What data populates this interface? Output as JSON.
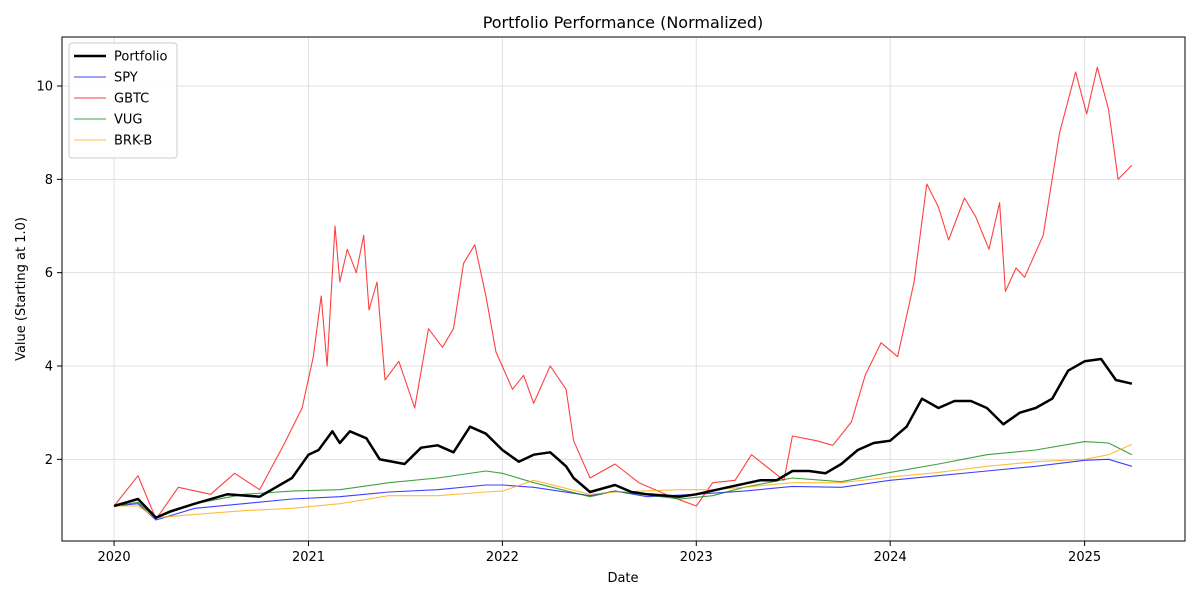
{
  "chart_data": {
    "type": "line",
    "title": "Portfolio Performance (Normalized)",
    "xlabel": "Date",
    "ylabel": "Value (Starting at 1.0)",
    "x_range": [
      "2019-09-25",
      "2025-07-09"
    ],
    "ylim": [
      0.25,
      11.05
    ],
    "x_ticks": [
      {
        "label": "2020",
        "date": "2020-01-01"
      },
      {
        "label": "2021",
        "date": "2021-01-01"
      },
      {
        "label": "2022",
        "date": "2022-01-01"
      },
      {
        "label": "2023",
        "date": "2023-01-01"
      },
      {
        "label": "2024",
        "date": "2024-01-01"
      },
      {
        "label": "2025",
        "date": "2025-01-01"
      }
    ],
    "y_ticks": [
      2,
      4,
      6,
      8,
      10
    ],
    "grid": true,
    "legend_position": "top-left",
    "series": [
      {
        "name": "Portfolio",
        "color": "#000000",
        "emphasis": "thick",
        "points": [
          [
            "2020-01-01",
            1.0
          ],
          [
            "2020-02-15",
            1.15
          ],
          [
            "2020-03-20",
            0.75
          ],
          [
            "2020-04-15",
            0.88
          ],
          [
            "2020-06-01",
            1.05
          ],
          [
            "2020-08-01",
            1.25
          ],
          [
            "2020-10-01",
            1.2
          ],
          [
            "2020-12-01",
            1.6
          ],
          [
            "2021-01-01",
            2.1
          ],
          [
            "2021-01-20",
            2.2
          ],
          [
            "2021-02-15",
            2.6
          ],
          [
            "2021-03-01",
            2.35
          ],
          [
            "2021-03-20",
            2.6
          ],
          [
            "2021-04-20",
            2.45
          ],
          [
            "2021-05-15",
            2.0
          ],
          [
            "2021-07-01",
            1.9
          ],
          [
            "2021-08-01",
            2.25
          ],
          [
            "2021-09-01",
            2.3
          ],
          [
            "2021-10-01",
            2.15
          ],
          [
            "2021-11-01",
            2.7
          ],
          [
            "2021-12-01",
            2.55
          ],
          [
            "2022-01-01",
            2.2
          ],
          [
            "2022-02-01",
            1.95
          ],
          [
            "2022-03-01",
            2.1
          ],
          [
            "2022-04-01",
            2.15
          ],
          [
            "2022-05-01",
            1.85
          ],
          [
            "2022-05-15",
            1.6
          ],
          [
            "2022-06-15",
            1.3
          ],
          [
            "2022-08-01",
            1.45
          ],
          [
            "2022-09-01",
            1.3
          ],
          [
            "2022-10-01",
            1.25
          ],
          [
            "2022-12-01",
            1.2
          ],
          [
            "2023-01-01",
            1.25
          ],
          [
            "2023-03-01",
            1.4
          ],
          [
            "2023-05-01",
            1.55
          ],
          [
            "2023-06-01",
            1.55
          ],
          [
            "2023-07-01",
            1.75
          ],
          [
            "2023-08-01",
            1.75
          ],
          [
            "2023-09-01",
            1.7
          ],
          [
            "2023-10-01",
            1.9
          ],
          [
            "2023-11-01",
            2.2
          ],
          [
            "2023-12-01",
            2.35
          ],
          [
            "2024-01-01",
            2.4
          ],
          [
            "2024-02-01",
            2.7
          ],
          [
            "2024-03-01",
            3.3
          ],
          [
            "2024-04-01",
            3.1
          ],
          [
            "2024-05-01",
            3.25
          ],
          [
            "2024-06-01",
            3.25
          ],
          [
            "2024-07-01",
            3.1
          ],
          [
            "2024-08-01",
            2.75
          ],
          [
            "2024-09-01",
            3.0
          ],
          [
            "2024-10-01",
            3.1
          ],
          [
            "2024-11-01",
            3.3
          ],
          [
            "2024-12-01",
            3.9
          ],
          [
            "2025-01-01",
            4.1
          ],
          [
            "2025-02-01",
            4.15
          ],
          [
            "2025-03-01",
            3.7
          ],
          [
            "2025-03-20",
            3.65
          ],
          [
            "2025-03-31",
            3.62
          ]
        ]
      },
      {
        "name": "SPY",
        "color": "#0000ff",
        "points": [
          [
            "2020-01-01",
            1.0
          ],
          [
            "2020-02-15",
            1.05
          ],
          [
            "2020-03-20",
            0.7
          ],
          [
            "2020-06-01",
            0.95
          ],
          [
            "2020-09-01",
            1.05
          ],
          [
            "2020-12-01",
            1.15
          ],
          [
            "2021-03-01",
            1.2
          ],
          [
            "2021-06-01",
            1.3
          ],
          [
            "2021-09-01",
            1.35
          ],
          [
            "2021-12-01",
            1.45
          ],
          [
            "2022-01-01",
            1.45
          ],
          [
            "2022-03-01",
            1.4
          ],
          [
            "2022-06-15",
            1.22
          ],
          [
            "2022-08-01",
            1.32
          ],
          [
            "2022-10-01",
            1.2
          ],
          [
            "2023-01-01",
            1.25
          ],
          [
            "2023-04-01",
            1.32
          ],
          [
            "2023-07-01",
            1.42
          ],
          [
            "2023-10-01",
            1.4
          ],
          [
            "2024-01-01",
            1.55
          ],
          [
            "2024-04-01",
            1.65
          ],
          [
            "2024-07-01",
            1.75
          ],
          [
            "2024-10-01",
            1.85
          ],
          [
            "2025-01-01",
            1.98
          ],
          [
            "2025-02-15",
            2.0
          ],
          [
            "2025-03-31",
            1.85
          ]
        ]
      },
      {
        "name": "GBTC",
        "color": "#ff0000",
        "points": [
          [
            "2020-01-01",
            1.0
          ],
          [
            "2020-02-15",
            1.65
          ],
          [
            "2020-03-20",
            0.72
          ],
          [
            "2020-05-01",
            1.4
          ],
          [
            "2020-07-01",
            1.25
          ],
          [
            "2020-08-15",
            1.7
          ],
          [
            "2020-10-01",
            1.35
          ],
          [
            "2020-11-15",
            2.3
          ],
          [
            "2020-12-20",
            3.1
          ],
          [
            "2021-01-10",
            4.2
          ],
          [
            "2021-01-25",
            5.5
          ],
          [
            "2021-02-05",
            4.0
          ],
          [
            "2021-02-20",
            7.0
          ],
          [
            "2021-03-01",
            5.8
          ],
          [
            "2021-03-15",
            6.5
          ],
          [
            "2021-04-01",
            6.0
          ],
          [
            "2021-04-15",
            6.8
          ],
          [
            "2021-04-25",
            5.2
          ],
          [
            "2021-05-10",
            5.8
          ],
          [
            "2021-05-25",
            3.7
          ],
          [
            "2021-06-20",
            4.1
          ],
          [
            "2021-07-20",
            3.1
          ],
          [
            "2021-08-15",
            4.8
          ],
          [
            "2021-09-10",
            4.4
          ],
          [
            "2021-10-01",
            4.8
          ],
          [
            "2021-10-20",
            6.2
          ],
          [
            "2021-11-10",
            6.6
          ],
          [
            "2021-12-01",
            5.5
          ],
          [
            "2021-12-20",
            4.3
          ],
          [
            "2022-01-20",
            3.5
          ],
          [
            "2022-02-10",
            3.8
          ],
          [
            "2022-03-01",
            3.2
          ],
          [
            "2022-04-01",
            4.0
          ],
          [
            "2022-05-01",
            3.5
          ],
          [
            "2022-05-15",
            2.4
          ],
          [
            "2022-06-15",
            1.6
          ],
          [
            "2022-08-01",
            1.9
          ],
          [
            "2022-09-15",
            1.5
          ],
          [
            "2022-11-15",
            1.2
          ],
          [
            "2023-01-01",
            1.0
          ],
          [
            "2023-02-01",
            1.5
          ],
          [
            "2023-03-15",
            1.55
          ],
          [
            "2023-04-15",
            2.1
          ],
          [
            "2023-06-15",
            1.55
          ],
          [
            "2023-07-01",
            2.5
          ],
          [
            "2023-08-15",
            2.4
          ],
          [
            "2023-09-15",
            2.3
          ],
          [
            "2023-10-20",
            2.8
          ],
          [
            "2023-11-15",
            3.8
          ],
          [
            "2023-12-15",
            4.5
          ],
          [
            "2024-01-15",
            4.2
          ],
          [
            "2024-02-15",
            5.8
          ],
          [
            "2024-03-10",
            7.9
          ],
          [
            "2024-04-01",
            7.4
          ],
          [
            "2024-04-20",
            6.7
          ],
          [
            "2024-05-20",
            7.6
          ],
          [
            "2024-06-10",
            7.2
          ],
          [
            "2024-07-05",
            6.5
          ],
          [
            "2024-07-25",
            7.5
          ],
          [
            "2024-08-05",
            5.6
          ],
          [
            "2024-08-25",
            6.1
          ],
          [
            "2024-09-10",
            5.9
          ],
          [
            "2024-10-15",
            6.8
          ],
          [
            "2024-11-15",
            9.0
          ],
          [
            "2024-12-15",
            10.3
          ],
          [
            "2025-01-05",
            9.4
          ],
          [
            "2025-01-25",
            10.4
          ],
          [
            "2025-02-15",
            9.5
          ],
          [
            "2025-03-05",
            8.0
          ],
          [
            "2025-03-31",
            8.3
          ]
        ]
      },
      {
        "name": "VUG",
        "color": "#008000",
        "points": [
          [
            "2020-01-01",
            1.0
          ],
          [
            "2020-02-15",
            1.08
          ],
          [
            "2020-03-20",
            0.75
          ],
          [
            "2020-06-01",
            1.05
          ],
          [
            "2020-09-01",
            1.25
          ],
          [
            "2020-12-01",
            1.32
          ],
          [
            "2021-03-01",
            1.35
          ],
          [
            "2021-06-01",
            1.5
          ],
          [
            "2021-09-01",
            1.6
          ],
          [
            "2021-12-01",
            1.75
          ],
          [
            "2022-01-01",
            1.7
          ],
          [
            "2022-03-01",
            1.5
          ],
          [
            "2022-06-15",
            1.2
          ],
          [
            "2022-08-01",
            1.32
          ],
          [
            "2022-12-01",
            1.15
          ],
          [
            "2023-02-01",
            1.22
          ],
          [
            "2023-04-01",
            1.4
          ],
          [
            "2023-07-01",
            1.6
          ],
          [
            "2023-10-01",
            1.52
          ],
          [
            "2024-01-01",
            1.72
          ],
          [
            "2024-04-01",
            1.9
          ],
          [
            "2024-07-01",
            2.1
          ],
          [
            "2024-10-01",
            2.2
          ],
          [
            "2025-01-01",
            2.38
          ],
          [
            "2025-02-15",
            2.35
          ],
          [
            "2025-03-31",
            2.1
          ]
        ]
      },
      {
        "name": "BRK-B",
        "color": "#ffa500",
        "points": [
          [
            "2020-01-01",
            1.0
          ],
          [
            "2020-02-15",
            1.0
          ],
          [
            "2020-03-20",
            0.75
          ],
          [
            "2020-06-01",
            0.82
          ],
          [
            "2020-09-01",
            0.9
          ],
          [
            "2020-12-01",
            0.95
          ],
          [
            "2021-03-01",
            1.05
          ],
          [
            "2021-06-01",
            1.22
          ],
          [
            "2021-09-01",
            1.22
          ],
          [
            "2021-12-01",
            1.3
          ],
          [
            "2022-01-01",
            1.32
          ],
          [
            "2022-03-01",
            1.55
          ],
          [
            "2022-06-15",
            1.25
          ],
          [
            "2022-08-01",
            1.3
          ],
          [
            "2022-12-01",
            1.35
          ],
          [
            "2023-02-01",
            1.35
          ],
          [
            "2023-04-01",
            1.4
          ],
          [
            "2023-07-01",
            1.5
          ],
          [
            "2023-10-01",
            1.5
          ],
          [
            "2024-01-01",
            1.62
          ],
          [
            "2024-04-01",
            1.72
          ],
          [
            "2024-07-01",
            1.85
          ],
          [
            "2024-10-01",
            1.95
          ],
          [
            "2025-01-01",
            2.0
          ],
          [
            "2025-02-15",
            2.1
          ],
          [
            "2025-03-31",
            2.32
          ]
        ]
      }
    ]
  }
}
